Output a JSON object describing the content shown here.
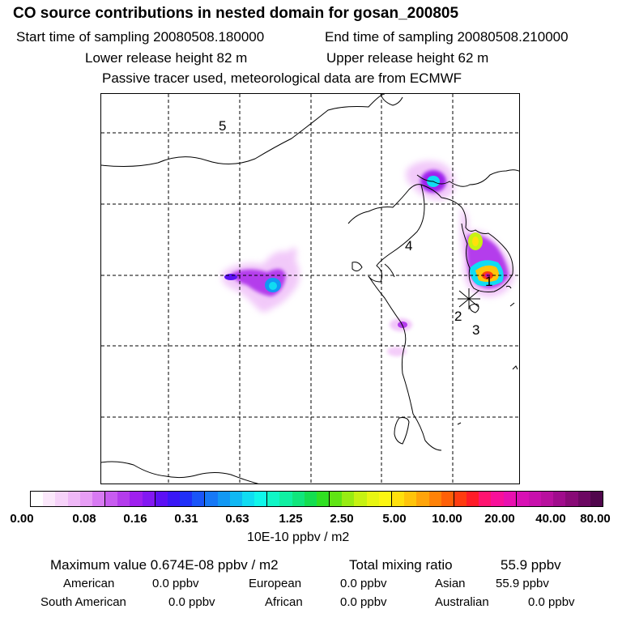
{
  "header": {
    "title": "CO  source contributions in nested domain for gosan_200805",
    "start_label": "Start time of sampling 20080508.180000",
    "end_label": "End time of sampling 20080508.210000",
    "lower_label": "Lower release height   82 m",
    "upper_label": "Upper release height   62 m",
    "tracer_note": "Passive tracer used, meteorological data are from ECMWF"
  },
  "chart_data": {
    "type": "heatmap",
    "title": "CO  source contributions in nested domain for gosan_200805",
    "unit": "10E-10 ppbv / m2",
    "scale_ticks": [
      "0.00",
      "0.08",
      "0.16",
      "0.31",
      "0.63",
      "1.25",
      "2.50",
      "5.00",
      "10.00",
      "20.00",
      "40.00",
      "80.00"
    ],
    "colors": [
      "#ffffff",
      "#fbe8fb",
      "#f6d2f9",
      "#efb8f7",
      "#e79ef5",
      "#d87af3",
      "#c85cf0",
      "#b43cec",
      "#9f20ee",
      "#8318f2",
      "#5c10f4",
      "#3a18f6",
      "#2030f8",
      "#1a55f8",
      "#1678f6",
      "#1298f4",
      "#10b8f4",
      "#10dcf2",
      "#10f6ea",
      "#10f6c6",
      "#10f0a2",
      "#10e67c",
      "#14de50",
      "#30e022",
      "#60e414",
      "#98ec12",
      "#c6f212",
      "#e8f612",
      "#fcf612",
      "#ffe00c",
      "#ffc40a",
      "#ffa40a",
      "#ff8208",
      "#ff6008",
      "#ff3c10",
      "#ff1c28",
      "#ff1470",
      "#f8109a",
      "#e810b0",
      "#d810b4",
      "#c810ac",
      "#b8109e",
      "#a00c8c",
      "#880a76",
      "#6c0862",
      "#50064c"
    ],
    "separators_after": [
      5,
      9,
      13,
      18,
      23,
      28,
      33,
      38
    ],
    "markers": [
      {
        "text": "5"
      },
      {
        "text": "4"
      },
      {
        "text": "1"
      },
      {
        "text": "2"
      },
      {
        "text": "3"
      }
    ]
  },
  "stats": {
    "max_label": "Maximum value  0.674E-08 ppbv / m2",
    "total_label": "Total mixing ratio",
    "total_value": "55.9 ppbv",
    "american_label": "American",
    "american_value": "0.0 ppbv",
    "european_label": "European",
    "european_value": "0.0 ppbv",
    "asian_label": "Asian",
    "asian_value": "55.9 ppbv",
    "south_american_label": "South American",
    "south_american_value": "0.0 ppbv",
    "african_label": "African",
    "african_value": "0.0 ppbv",
    "australian_label": "Australian",
    "australian_value": "0.0 ppbv"
  }
}
